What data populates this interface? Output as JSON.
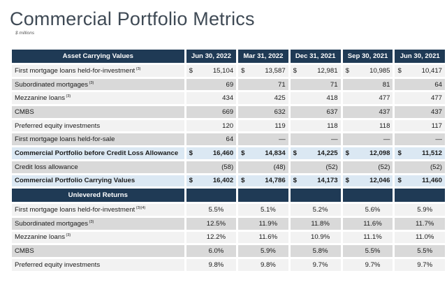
{
  "title": "Commercial Portfolio Metrics",
  "subtitle": "$ millions",
  "columns": [
    "Jun 30, 2022",
    "Mar 31, 2022",
    "Dec 31, 2021",
    "Sep 30, 2021",
    "Jun 30, 2021"
  ],
  "asset_header": "Asset Carrying Values",
  "returns_header": "Unlevered Returns",
  "rows": [
    {
      "label": "First mortgage loans held-for-investment",
      "sup": "(3)",
      "currency": "$",
      "values": [
        "15,104",
        "13,587",
        "12,981",
        "10,985",
        "10,417"
      ]
    },
    {
      "label": "Subordinated mortgages",
      "sup": "(3)",
      "currency": "",
      "values": [
        "69",
        "71",
        "71",
        "81",
        "64"
      ]
    },
    {
      "label": "Mezzanine loans",
      "sup": "(3)",
      "currency": "",
      "values": [
        "434",
        "425",
        "418",
        "477",
        "477"
      ]
    },
    {
      "label": "CMBS",
      "sup": "",
      "currency": "",
      "values": [
        "669",
        "632",
        "637",
        "437",
        "437"
      ]
    },
    {
      "label": "Preferred equity investments",
      "sup": "",
      "currency": "",
      "values": [
        "120",
        "119",
        "118",
        "118",
        "117"
      ]
    },
    {
      "label": "First mortgage loans held-for-sale",
      "sup": "",
      "currency": "",
      "values": [
        "64",
        "—",
        "—",
        "—",
        "—"
      ]
    }
  ],
  "subtotal": {
    "label": "Commercial Portfolio before Credit Loss Allowance",
    "currency": "$",
    "values": [
      "16,460",
      "14,834",
      "14,225",
      "12,098",
      "11,512"
    ]
  },
  "allowance": {
    "label": "Credit loss allowance",
    "values": [
      "(58)",
      "(48)",
      "(52)",
      "(52)",
      "(52)"
    ]
  },
  "total": {
    "label": "Commercial Portfolio Carrying Values",
    "currency": "$",
    "values": [
      "16,402",
      "14,786",
      "14,173",
      "12,046",
      "11,460"
    ]
  },
  "returns": [
    {
      "label": "First mortgage loans held-for-investment",
      "sup": "(3)(4)",
      "values": [
        "5.5%",
        "5.1%",
        "5.2%",
        "5.6%",
        "5.9%"
      ]
    },
    {
      "label": "Subordinated mortgages",
      "sup": "(3)",
      "values": [
        "12.5%",
        "11.9%",
        "11.8%",
        "11.6%",
        "11.7%"
      ]
    },
    {
      "label": "Mezzanine loans",
      "sup": "(3)",
      "values": [
        "12.2%",
        "11.6%",
        "10.9%",
        "11.1%",
        "11.0%"
      ]
    },
    {
      "label": "CMBS",
      "sup": "",
      "values": [
        "6.0%",
        "5.9%",
        "5.8%",
        "5.5%",
        "5.5%"
      ]
    },
    {
      "label": "Preferred equity investments",
      "sup": "",
      "values": [
        "9.8%",
        "9.8%",
        "9.7%",
        "9.7%",
        "9.7%"
      ]
    }
  ]
}
